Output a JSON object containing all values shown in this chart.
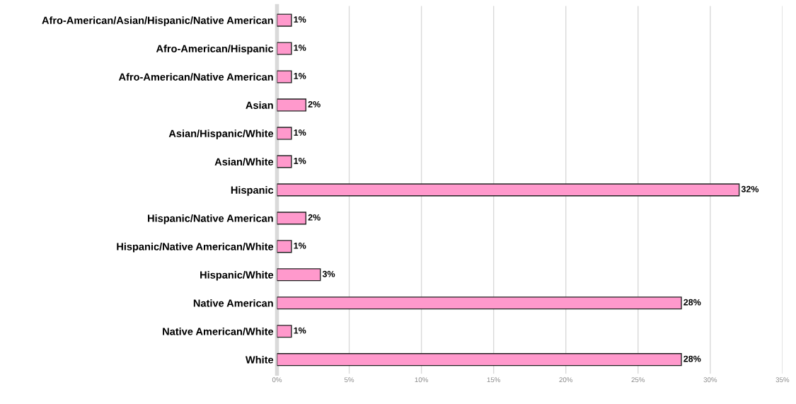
{
  "chart_data": {
    "type": "bar",
    "orientation": "horizontal",
    "categories": [
      "Afro-American/Asian/Hispanic/Native American",
      "Afro-American/Hispanic",
      "Afro-American/Native American",
      "Asian",
      "Asian/Hispanic/White",
      "Asian/White",
      "Hispanic",
      "Hispanic/Native American",
      "Hispanic/Native American/White",
      "Hispanic/White",
      "Native American",
      "Native American/White",
      "White"
    ],
    "values": [
      1,
      1,
      1,
      2,
      1,
      1,
      32,
      2,
      1,
      3,
      28,
      1,
      28
    ],
    "value_labels": [
      "1%",
      "1%",
      "1%",
      "2%",
      "1%",
      "1%",
      "32%",
      "2%",
      "1%",
      "3%",
      "28%",
      "1%",
      "28%"
    ],
    "color": "#ff99cc",
    "xlim": [
      0,
      35
    ],
    "xticks": [
      {
        "value": 0,
        "label": "0%"
      },
      {
        "value": 5,
        "label": "5%"
      },
      {
        "value": 10,
        "label": "10%"
      },
      {
        "value": 15,
        "label": "15%"
      },
      {
        "value": 20,
        "label": "20%"
      },
      {
        "value": 25,
        "label": "25%"
      },
      {
        "value": 30,
        "label": "30%"
      },
      {
        "value": 35,
        "label": "35%"
      }
    ],
    "grid": "x"
  }
}
